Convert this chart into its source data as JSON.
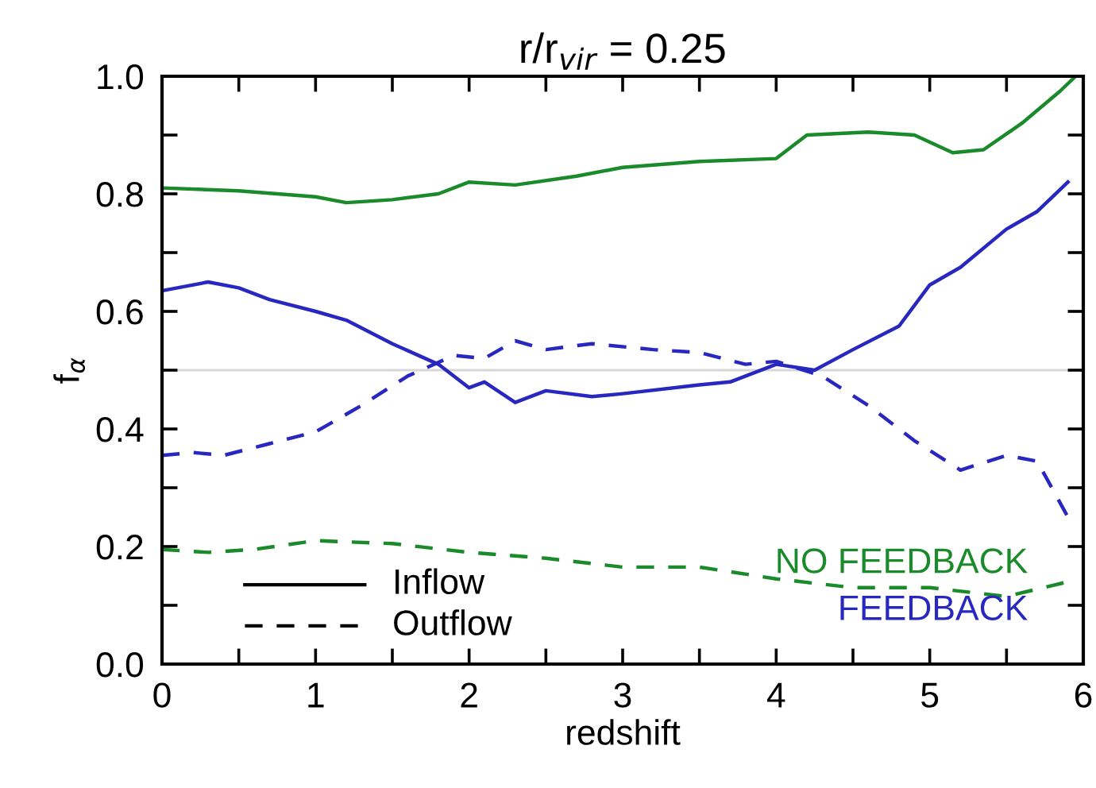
{
  "chart_data": {
    "type": "line",
    "title": "r/r$_{vir}$ = 0.25",
    "xlabel": "redshift",
    "ylabel": "f$_{α}$",
    "xlim": [
      0,
      6
    ],
    "ylim": [
      0,
      1.0
    ],
    "xticks": [
      0,
      {
        "value": 0.5,
        "label": null
      },
      1,
      {
        "value": 1.5,
        "label": null
      },
      2,
      {
        "value": 2.5,
        "label": null
      },
      3,
      {
        "value": 3.5,
        "label": null
      },
      4,
      {
        "value": 4.5,
        "label": null
      },
      5,
      {
        "value": 5.5,
        "label": null
      },
      6
    ],
    "yticks": [
      {
        "value": 0,
        "label": "0.0"
      },
      {
        "value": 0.1,
        "label": null
      },
      0.2,
      {
        "value": 0.3,
        "label": null
      },
      0.4,
      {
        "value": 0.5,
        "label": null
      },
      0.6,
      {
        "value": 0.7,
        "label": null
      },
      0.8,
      {
        "value": 0.9,
        "label": null
      },
      {
        "value": 1.0,
        "label": "1.0"
      }
    ],
    "grid": false,
    "annotations": [
      "Inflow",
      "Outflow",
      "NO FEEDBACK",
      "FEEDBACK"
    ],
    "ref_lines": [
      {
        "axis": "y",
        "value": 0.5,
        "label": null,
        "color": "#d8d8d8"
      }
    ],
    "series": [
      {
        "color": "#1a8a2a",
        "line_style": "solid",
        "x": [
          0,
          0.5,
          1,
          1.2,
          1.5,
          1.8,
          2.0,
          2.3,
          2.7,
          3.0,
          3.5,
          4.0,
          4.2,
          4.6,
          4.9,
          5.15,
          5.35,
          5.6,
          5.85,
          5.95
        ],
        "values": [
          0.81,
          0.805,
          0.795,
          0.785,
          0.79,
          0.8,
          0.82,
          0.815,
          0.83,
          0.845,
          0.855,
          0.86,
          0.9,
          0.905,
          0.9,
          0.87,
          0.875,
          0.92,
          0.975,
          1.0
        ]
      },
      {
        "color": "#1a8a2a",
        "line_style": "dashed",
        "x": [
          0,
          0.3,
          0.6,
          1.0,
          1.5,
          2.0,
          2.5,
          3.0,
          3.5,
          4.0,
          4.5,
          5.0,
          5.5,
          5.9
        ],
        "values": [
          0.195,
          0.19,
          0.195,
          0.21,
          0.205,
          0.19,
          0.18,
          0.165,
          0.165,
          0.145,
          0.13,
          0.13,
          0.115,
          0.14
        ]
      },
      {
        "color": "#2828c0",
        "line_style": "solid",
        "x": [
          0,
          0.1,
          0.3,
          0.5,
          0.7,
          1.0,
          1.2,
          1.5,
          1.8,
          2.0,
          2.1,
          2.3,
          2.5,
          2.8,
          3.0,
          3.5,
          3.7,
          4.0,
          4.25,
          4.5,
          4.8,
          5.0,
          5.2,
          5.5,
          5.7,
          5.9
        ],
        "values": [
          0.635,
          0.64,
          0.65,
          0.64,
          0.62,
          0.6,
          0.585,
          0.545,
          0.51,
          0.47,
          0.48,
          0.445,
          0.465,
          0.455,
          0.46,
          0.475,
          0.48,
          0.51,
          0.5,
          0.535,
          0.575,
          0.645,
          0.675,
          0.74,
          0.77,
          0.82
        ]
      },
      {
        "color": "#2828c0",
        "line_style": "dashed",
        "x": [
          0,
          0.2,
          0.4,
          0.7,
          1.0,
          1.3,
          1.6,
          1.9,
          2.1,
          2.3,
          2.5,
          2.8,
          3.2,
          3.5,
          3.8,
          4.0,
          4.3,
          4.6,
          4.9,
          5.2,
          5.5,
          5.7,
          5.9
        ],
        "values": [
          0.355,
          0.36,
          0.355,
          0.375,
          0.395,
          0.44,
          0.49,
          0.525,
          0.52,
          0.55,
          0.535,
          0.545,
          0.535,
          0.53,
          0.51,
          0.515,
          0.49,
          0.44,
          0.38,
          0.33,
          0.355,
          0.345,
          0.25
        ]
      }
    ]
  }
}
